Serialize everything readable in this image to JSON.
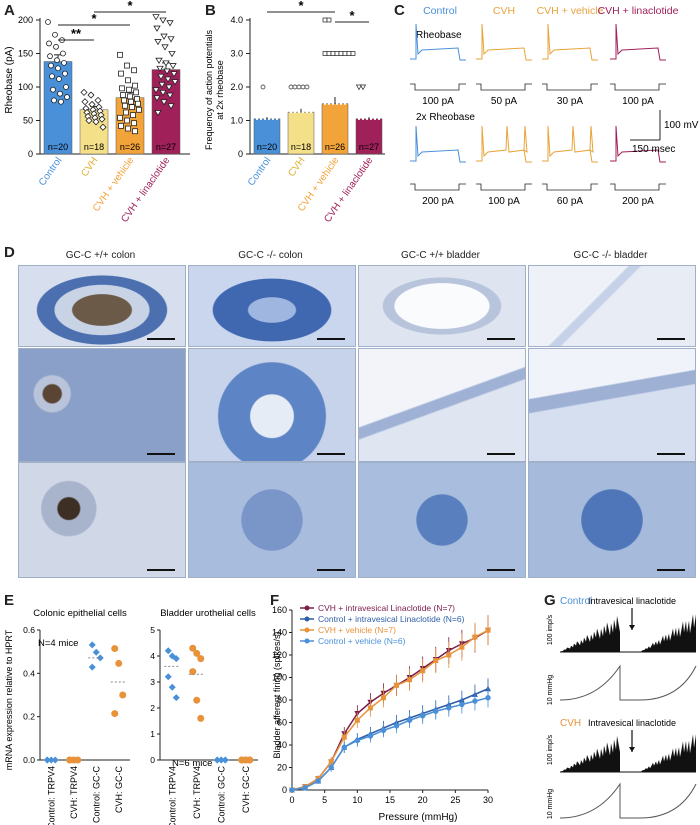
{
  "panel_letters": [
    "A",
    "B",
    "C",
    "D",
    "E",
    "F",
    "G"
  ],
  "panel_a": {
    "ylabel": "Rheobase (pA)",
    "yticks": [
      "0",
      "50",
      "100",
      "150",
      "200"
    ],
    "categories": [
      "Control",
      "CVH",
      "CVH + vehicle",
      "CVH + linaclotide"
    ],
    "n_labels": [
      "n=20",
      "n=18",
      "n=26",
      "n=27"
    ],
    "colors": [
      "#4a90d9",
      "#f5e08a",
      "#f2a33a",
      "#a0205a"
    ],
    "sig": [
      "**",
      "*",
      "*"
    ]
  },
  "panel_b": {
    "ylabel_line1": "Frequency of action potentials",
    "ylabel_line2": "at 2x rheobase",
    "yticks": [
      "0",
      "1.0",
      "2.0",
      "3.0",
      "4.0"
    ],
    "categories": [
      "Control",
      "CVH",
      "CVH + vehicle",
      "CVH + linaclotide"
    ],
    "n_labels": [
      "n=20",
      "n=18",
      "n=26",
      "n=27"
    ],
    "sig": [
      "*",
      "*"
    ]
  },
  "panel_c": {
    "headers": [
      "Control",
      "CVH",
      "CVH + vehicle",
      "CVH + linaclotide"
    ],
    "header_colors": [
      "#4a90d9",
      "#e8a33a",
      "#e8a33a",
      "#a0205a"
    ],
    "row1_label": "Rheobase",
    "row2_label": "2x Rheobase",
    "row1_currents": [
      "100 pA",
      "50 pA",
      "30 pA",
      "100 pA"
    ],
    "row2_currents": [
      "200 pA",
      "100 pA",
      "60 pA",
      "200 pA"
    ],
    "scale_v": "100 mV",
    "scale_t": "150 msec"
  },
  "panel_d": {
    "titles": [
      "GC-C +/+ colon",
      "GC-C -/- colon",
      "GC-C +/+ bladder",
      "GC-C -/- bladder"
    ]
  },
  "panel_e": {
    "ylabel": "mRNA expression relative to HPRT",
    "left_title": "Colonic epithelial cells",
    "right_title": "Bladder urothelial cells",
    "left_note": "N=4 mice",
    "right_note": "N=6 mice",
    "yticks": [
      "0.0",
      "0.2",
      "0.4",
      "0.6"
    ],
    "categories": [
      "Control: TRPV4",
      "CVH: TRPV4",
      "Control: GC-C",
      "CVH: GC-C"
    ]
  },
  "panel_f": {
    "ylabel": "Bladder afferent firing (spikes/s)",
    "xlabel": "Pressure (mmHg)",
    "xticks": [
      "0",
      "5",
      "10",
      "15",
      "20",
      "25",
      "30"
    ],
    "yticks": [
      "0",
      "20",
      "40",
      "60",
      "80",
      "100",
      "120",
      "140",
      "160"
    ],
    "legend": [
      {
        "name": "CVH + intravesical Linaclotide (N=7)",
        "color": "#7a1e4a"
      },
      {
        "name": "Control + intravesical Linaclotide (N=6)",
        "color": "#2f5ea8"
      },
      {
        "name": "CVH + vehicle (N=7)",
        "color": "#e8923a"
      },
      {
        "name": "Control + vehicle (N=6)",
        "color": "#4a90d9"
      }
    ]
  },
  "panel_g": {
    "control_label": "Control",
    "cvh_label": "CVH",
    "annotation": "Intravesical linaclotide",
    "y_rate": "100 imp/s",
    "y_pressure": "10 mmHg"
  },
  "chart_data": [
    {
      "type": "bar",
      "panel": "A",
      "categories": [
        "Control",
        "CVH",
        "CVH + vehicle",
        "CVH + linaclotide"
      ],
      "values": [
        138,
        66,
        84,
        126
      ],
      "errors": [
        10,
        5,
        8,
        10
      ],
      "ylabel": "Rheobase (pA)",
      "ylim": [
        0,
        200
      ],
      "points": [
        [
          197,
          178,
          170,
          165,
          160,
          150,
          146,
          140,
          136,
          132,
          128,
          120,
          116,
          112,
          100,
          96,
          90,
          85,
          80,
          78
        ],
        [
          92,
          88,
          80,
          78,
          74,
          70,
          68,
          66,
          64,
          62,
          60,
          58,
          56,
          54,
          52,
          50,
          48,
          40
        ],
        [
          148,
          132,
          125,
          120,
          110,
          102,
          98,
          96,
          92,
          88,
          86,
          82,
          80,
          78,
          75,
          72,
          70,
          66,
          62,
          58,
          54,
          50,
          46,
          42,
          38,
          34
        ],
        [
          205,
          200,
          196,
          188,
          176,
          172,
          168,
          160,
          150,
          140,
          136,
          132,
          128,
          124,
          120,
          116,
          112,
          108,
          104,
          100,
          96,
          92,
          88,
          84,
          78,
          72,
          62
        ]
      ]
    },
    {
      "type": "bar",
      "panel": "B",
      "categories": [
        "Control",
        "CVH",
        "CVH + vehicle",
        "CVH + linaclotide"
      ],
      "values": [
        1.05,
        1.25,
        1.5,
        1.05
      ],
      "errors": [
        0.05,
        0.1,
        0.2,
        0.05
      ],
      "ylim": [
        0,
        4.0
      ],
      "outliers": [
        [
          2.0
        ],
        [
          2.0
        ],
        [
          3.0,
          4.0
        ],
        [
          2.0
        ]
      ]
    },
    {
      "type": "scatter",
      "panel": "E left",
      "categories": [
        "Control: TRPV4",
        "CVH: TRPV4",
        "Control: GC-C",
        "CVH: GC-C"
      ],
      "points": [
        [
          0,
          0,
          0,
          0
        ],
        [
          0,
          0,
          0,
          0
        ],
        [
          0.62,
          0.58,
          0.55,
          0.5
        ],
        [
          0.6,
          0.52,
          0.35,
          0.25
        ]
      ],
      "means": [
        0,
        0,
        0.55,
        0.42
      ],
      "ylim": [
        0,
        0.7
      ]
    },
    {
      "type": "scatter",
      "panel": "E right",
      "categories": [
        "Control: TRPV4",
        "CVH: TRPV4",
        "Control: GC-C",
        "CVH: GC-C"
      ],
      "points": [
        [
          4.2,
          4.0,
          3.9,
          3.2,
          2.8,
          2.4
        ],
        [
          4.3,
          4.1,
          3.9,
          3.4,
          2.3,
          1.6
        ],
        [
          0,
          0,
          0,
          0,
          0,
          0
        ],
        [
          0,
          0,
          0,
          0,
          0,
          0
        ]
      ],
      "means": [
        3.6,
        3.3,
        0,
        0
      ],
      "ylim": [
        0,
        5
      ]
    },
    {
      "type": "line",
      "panel": "F",
      "x": [
        0,
        2,
        4,
        6,
        8,
        10,
        12,
        14,
        16,
        18,
        20,
        22,
        24,
        26,
        28,
        30
      ],
      "xlim": [
        0,
        30
      ],
      "ylim": [
        0,
        160
      ],
      "xlabel": "Pressure (mmHg)",
      "ylabel": "Bladder afferent firing (spikes/s)",
      "series": [
        {
          "name": "CVH + intravesical Linaclotide (N=7)",
          "values": [
            0,
            3,
            10,
            25,
            50,
            68,
            78,
            86,
            93,
            100,
            108,
            116,
            124,
            130,
            135,
            142
          ]
        },
        {
          "name": "Control + intravesical Linaclotide (N=6)",
          "values": [
            0,
            2,
            8,
            20,
            38,
            45,
            50,
            55,
            60,
            64,
            68,
            72,
            76,
            80,
            85,
            90
          ]
        },
        {
          "name": "CVH + vehicle (N=7)",
          "values": [
            0,
            3,
            10,
            25,
            47,
            62,
            73,
            82,
            93,
            98,
            106,
            115,
            120,
            127,
            136,
            142
          ]
        },
        {
          "name": "Control + vehicle (N=6)",
          "values": [
            0,
            2,
            8,
            20,
            38,
            44,
            48,
            53,
            57,
            62,
            66,
            70,
            73,
            76,
            79,
            82
          ]
        }
      ]
    }
  ]
}
